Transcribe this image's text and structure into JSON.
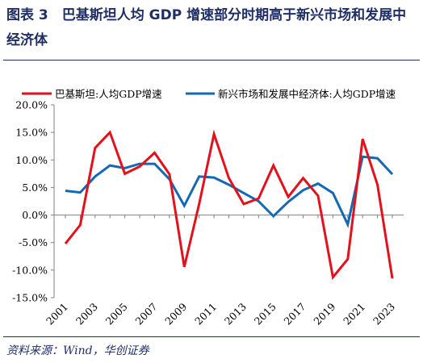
{
  "figure": {
    "title": "图表 3　巴基斯坦人均 GDP 增速部分时期高于新兴市场和发展中经济体",
    "source": "资料来源：Wind，华创证券"
  },
  "colors": {
    "title": "#1f2f66",
    "pakistan": "#e3111b",
    "emerging": "#1469b4"
  },
  "chart_data": {
    "type": "line",
    "x": [
      2001,
      2002,
      2003,
      2004,
      2005,
      2006,
      2007,
      2008,
      2009,
      2010,
      2011,
      2012,
      2013,
      2014,
      2015,
      2016,
      2017,
      2018,
      2019,
      2020,
      2021,
      2022,
      2023
    ],
    "x_ticks": [
      "2001",
      "2003",
      "2005",
      "2007",
      "2009",
      "2011",
      "2013",
      "2015",
      "2017",
      "2019",
      "2021",
      "2023"
    ],
    "y_ticks": [
      "20.0%",
      "15.0%",
      "10.0%",
      "5.0%",
      "0.0%",
      "-5.0%",
      "-10.0%",
      "-15.0%"
    ],
    "ylim": [
      -15,
      20
    ],
    "grid": false,
    "legend_position": "top",
    "series": [
      {
        "name": "巴基斯坦:人均GDP增速",
        "values": [
          -5.2,
          -1.8,
          12.2,
          15.0,
          7.5,
          8.8,
          11.3,
          7.4,
          -9.4,
          2.0,
          14.7,
          6.7,
          2.0,
          3.0,
          9.0,
          3.3,
          6.7,
          3.5,
          -11.3,
          -8.0,
          13.8,
          5.5,
          -11.5
        ]
      },
      {
        "name": "新兴市场和发展中经济体:人均GDP增速",
        "values": [
          4.4,
          4.1,
          7.0,
          9.0,
          8.5,
          9.3,
          9.3,
          6.5,
          1.7,
          7.0,
          6.8,
          5.5,
          4.0,
          2.5,
          -0.2,
          2.4,
          4.5,
          5.7,
          4.0,
          -1.7,
          10.6,
          10.3,
          7.4
        ]
      }
    ]
  }
}
